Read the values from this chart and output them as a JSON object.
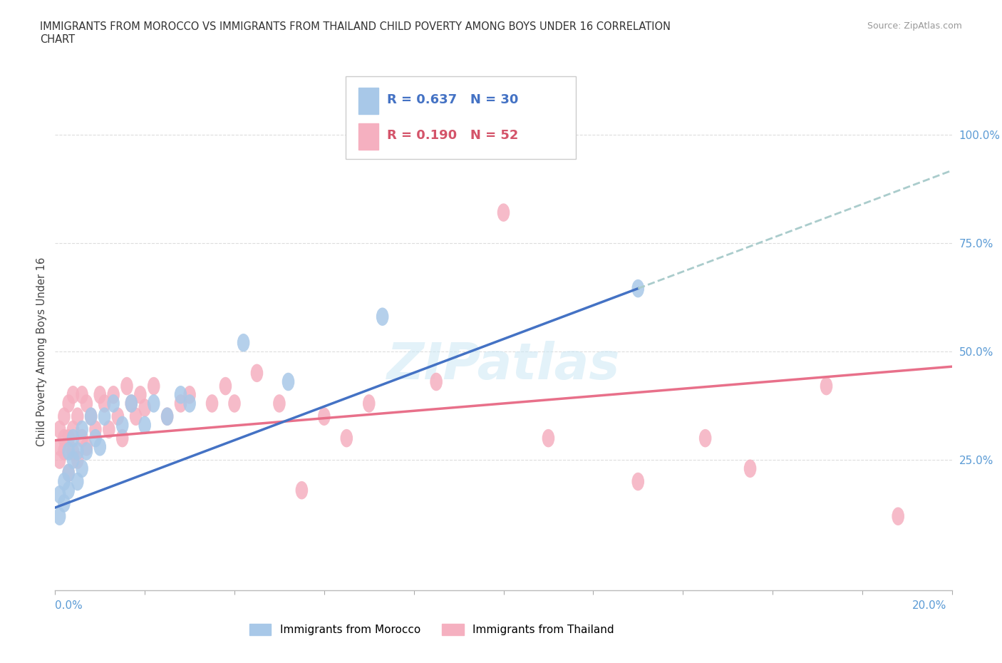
{
  "title_line1": "IMMIGRANTS FROM MOROCCO VS IMMIGRANTS FROM THAILAND CHILD POVERTY AMONG BOYS UNDER 16 CORRELATION",
  "title_line2": "CHART",
  "source": "Source: ZipAtlas.com",
  "ylabel": "Child Poverty Among Boys Under 16",
  "xlim": [
    0.0,
    0.2
  ],
  "ylim": [
    -0.05,
    1.05
  ],
  "ytick_vals": [
    0.0,
    0.25,
    0.5,
    0.75,
    1.0
  ],
  "ytick_labels": [
    "",
    "25.0%",
    "50.0%",
    "75.0%",
    "100.0%"
  ],
  "xtick_vals": [
    0.0,
    0.02,
    0.04,
    0.06,
    0.08,
    0.1,
    0.12,
    0.14,
    0.16,
    0.18,
    0.2
  ],
  "morocco_color": "#a8c8e8",
  "thailand_color": "#f5b0c0",
  "morocco_line_color": "#4472c4",
  "thailand_line_color": "#e8708a",
  "dashed_line_color": "#aacccc",
  "legend_R_morocco": "0.637",
  "legend_N_morocco": "30",
  "legend_R_thailand": "0.190",
  "legend_N_thailand": "52",
  "morocco_line_x0": 0.0,
  "morocco_line_y0": 0.14,
  "morocco_line_x1": 0.13,
  "morocco_line_y1": 0.645,
  "thailand_line_x0": 0.0,
  "thailand_line_y0": 0.295,
  "thailand_line_x1": 0.2,
  "thailand_line_y1": 0.465,
  "morocco_x": [
    0.001,
    0.001,
    0.002,
    0.002,
    0.003,
    0.003,
    0.003,
    0.004,
    0.004,
    0.005,
    0.005,
    0.006,
    0.006,
    0.007,
    0.008,
    0.009,
    0.01,
    0.011,
    0.013,
    0.015,
    0.017,
    0.02,
    0.022,
    0.025,
    0.028,
    0.03,
    0.042,
    0.052,
    0.073,
    0.13
  ],
  "morocco_y": [
    0.12,
    0.17,
    0.15,
    0.2,
    0.18,
    0.22,
    0.27,
    0.25,
    0.3,
    0.2,
    0.27,
    0.23,
    0.32,
    0.27,
    0.35,
    0.3,
    0.28,
    0.35,
    0.38,
    0.33,
    0.38,
    0.33,
    0.38,
    0.35,
    0.4,
    0.38,
    0.52,
    0.43,
    0.58,
    0.645
  ],
  "thailand_x": [
    0.001,
    0.001,
    0.001,
    0.002,
    0.002,
    0.002,
    0.003,
    0.003,
    0.003,
    0.004,
    0.004,
    0.004,
    0.005,
    0.005,
    0.006,
    0.006,
    0.007,
    0.007,
    0.008,
    0.009,
    0.01,
    0.011,
    0.012,
    0.013,
    0.014,
    0.015,
    0.016,
    0.017,
    0.018,
    0.019,
    0.02,
    0.022,
    0.025,
    0.028,
    0.03,
    0.035,
    0.038,
    0.04,
    0.045,
    0.05,
    0.055,
    0.06,
    0.065,
    0.07,
    0.085,
    0.1,
    0.11,
    0.13,
    0.145,
    0.155,
    0.172,
    0.188
  ],
  "thailand_y": [
    0.25,
    0.28,
    0.32,
    0.27,
    0.3,
    0.35,
    0.22,
    0.3,
    0.38,
    0.27,
    0.32,
    0.4,
    0.25,
    0.35,
    0.3,
    0.4,
    0.28,
    0.38,
    0.35,
    0.32,
    0.4,
    0.38,
    0.32,
    0.4,
    0.35,
    0.3,
    0.42,
    0.38,
    0.35,
    0.4,
    0.37,
    0.42,
    0.35,
    0.38,
    0.4,
    0.38,
    0.42,
    0.38,
    0.45,
    0.38,
    0.18,
    0.35,
    0.3,
    0.38,
    0.43,
    0.82,
    0.3,
    0.2,
    0.3,
    0.23,
    0.42,
    0.12
  ]
}
